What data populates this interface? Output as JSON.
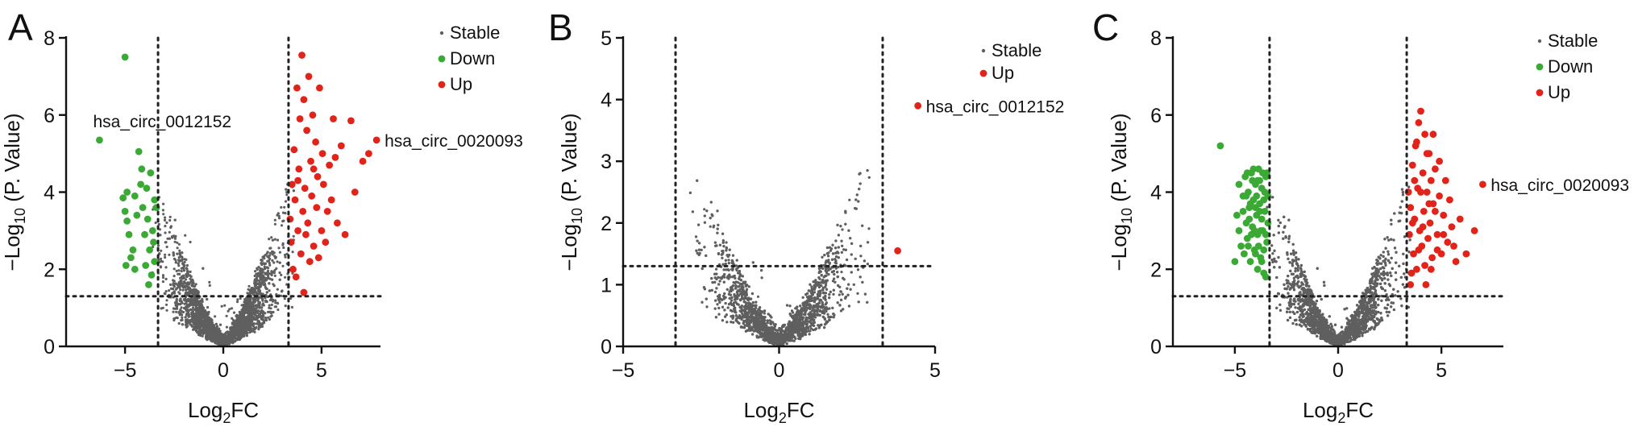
{
  "colors": {
    "stable": "#5f5f5f",
    "down": "#3aaa35",
    "up": "#e2231a",
    "axis": "#111111"
  },
  "chart_data": [
    {
      "type": "scatter",
      "panel": "A",
      "xlabel": "Log2FC",
      "ylabel": "−Log10 (P. Value)",
      "xlim": [
        -8,
        8
      ],
      "ylim": [
        0,
        8
      ],
      "xticks": [
        -5,
        0,
        5
      ],
      "yticks": [
        0,
        2,
        4,
        6,
        8
      ],
      "thresholds": {
        "log2fc": [
          -3.32,
          3.32
        ],
        "neg_log10_p": 1.3
      },
      "legend": {
        "placement": "top-right",
        "entries": [
          "Stable",
          "Down",
          "Up"
        ]
      },
      "stable_cloud": {
        "max_abs_log2fc": 3.6,
        "approx_points": 3200
      },
      "series": [
        {
          "name": "Down",
          "points": [
            [
              -6.3,
              5.35
            ],
            [
              -5.0,
              7.5
            ],
            [
              -4.95,
              2.1
            ],
            [
              -5.1,
              3.85
            ],
            [
              -4.9,
              4.0
            ],
            [
              -5.0,
              3.5
            ],
            [
              -4.8,
              2.9
            ],
            [
              -4.7,
              2.3
            ],
            [
              -4.6,
              2.5
            ],
            [
              -4.5,
              3.9
            ],
            [
              -4.4,
              3.4
            ],
            [
              -4.3,
              5.05
            ],
            [
              -4.2,
              4.2
            ],
            [
              -4.15,
              4.6
            ],
            [
              -4.1,
              3.6
            ],
            [
              -4.0,
              2.9
            ],
            [
              -3.95,
              2.1
            ],
            [
              -3.9,
              4.1
            ],
            [
              -3.85,
              3.3
            ],
            [
              -3.8,
              1.6
            ],
            [
              -3.75,
              2.5
            ],
            [
              -3.7,
              4.5
            ],
            [
              -3.65,
              1.85
            ],
            [
              -3.6,
              3.0
            ],
            [
              -3.55,
              2.7
            ],
            [
              -3.5,
              3.8
            ],
            [
              -3.5,
              2.2
            ],
            [
              -3.4,
              3.6
            ],
            [
              -4.9,
              3.25
            ],
            [
              -4.5,
              2.0
            ]
          ]
        },
        {
          "name": "Up",
          "points": [
            [
              3.4,
              3.3
            ],
            [
              3.45,
              2.7
            ],
            [
              3.5,
              4.2
            ],
            [
              3.55,
              2.0
            ],
            [
              3.6,
              5.1
            ],
            [
              3.65,
              3.8
            ],
            [
              3.7,
              1.8
            ],
            [
              3.75,
              6.7
            ],
            [
              3.8,
              3.0
            ],
            [
              3.85,
              4.6
            ],
            [
              3.9,
              5.9
            ],
            [
              3.95,
              2.4
            ],
            [
              4.0,
              7.55
            ],
            [
              4.05,
              3.5
            ],
            [
              4.1,
              1.4
            ],
            [
              4.1,
              6.4
            ],
            [
              4.15,
              4.1
            ],
            [
              4.2,
              2.9
            ],
            [
              4.25,
              5.6
            ],
            [
              4.3,
              3.2
            ],
            [
              4.35,
              7.0
            ],
            [
              4.4,
              2.2
            ],
            [
              4.45,
              4.8
            ],
            [
              4.5,
              3.9
            ],
            [
              4.55,
              6.0
            ],
            [
              4.6,
              2.6
            ],
            [
              4.7,
              5.3
            ],
            [
              4.75,
              3.6
            ],
            [
              4.8,
              4.4
            ],
            [
              4.85,
              2.3
            ],
            [
              4.9,
              6.7
            ],
            [
              5.0,
              3.0
            ],
            [
              5.05,
              5.0
            ],
            [
              5.1,
              4.2
            ],
            [
              5.2,
              2.7
            ],
            [
              5.3,
              3.5
            ],
            [
              5.4,
              4.7
            ],
            [
              5.5,
              3.8
            ],
            [
              5.6,
              5.9
            ],
            [
              5.7,
              4.9
            ],
            [
              5.8,
              3.2
            ],
            [
              6.0,
              5.2
            ],
            [
              6.2,
              2.9
            ],
            [
              6.5,
              5.85
            ],
            [
              6.7,
              4.0
            ],
            [
              7.1,
              4.8
            ],
            [
              7.4,
              5.0
            ],
            [
              7.8,
              5.35
            ],
            [
              3.8,
              4.3
            ],
            [
              4.6,
              4.6
            ]
          ]
        }
      ],
      "annotations": [
        {
          "label": "hsa_circ_0012152",
          "x": -6.3,
          "y": 5.35
        },
        {
          "label": "hsa_circ_0020093",
          "x": 7.8,
          "y": 5.35
        }
      ]
    },
    {
      "type": "scatter",
      "panel": "B",
      "xlabel": "Log2FC",
      "ylabel": "−Log10 (P. Value)",
      "xlim": [
        -5,
        5
      ],
      "ylim": [
        0,
        5
      ],
      "xticks": [
        -5,
        0,
        5
      ],
      "yticks": [
        0,
        1,
        2,
        3,
        4,
        5
      ],
      "thresholds": {
        "log2fc": [
          -3.32,
          3.32
        ],
        "neg_log10_p": 1.3
      },
      "legend": {
        "placement": "top-right",
        "entries": [
          "Stable",
          "Up"
        ]
      },
      "stable_cloud": {
        "max_abs_log2fc": 2.9,
        "approx_points": 3400
      },
      "series": [
        {
          "name": "Up",
          "points": [
            [
              4.45,
              3.9
            ],
            [
              3.8,
              1.55
            ]
          ]
        }
      ],
      "annotations": [
        {
          "label": "hsa_circ_0012152",
          "x": 4.45,
          "y": 3.9
        }
      ]
    },
    {
      "type": "scatter",
      "panel": "C",
      "xlabel": "Log2FC",
      "ylabel": "−Log10 (P. Value)",
      "xlim": [
        -8,
        8
      ],
      "ylim": [
        0,
        8
      ],
      "xticks": [
        -5,
        0,
        5
      ],
      "yticks": [
        0,
        2,
        4,
        6,
        8
      ],
      "thresholds": {
        "log2fc": [
          -3.32,
          3.32
        ],
        "neg_log10_p": 1.3
      },
      "legend": {
        "placement": "top-right",
        "entries": [
          "Stable",
          "Down",
          "Up"
        ]
      },
      "stable_cloud": {
        "max_abs_log2fc": 3.5,
        "approx_points": 5200
      },
      "series": [
        {
          "name": "Down",
          "points": [
            [
              -5.7,
              5.2
            ],
            [
              -5.0,
              2.2
            ],
            [
              -4.9,
              3.4
            ],
            [
              -4.8,
              3.0
            ],
            [
              -4.7,
              2.6
            ],
            [
              -4.6,
              3.9
            ],
            [
              -4.55,
              2.4
            ],
            [
              -4.5,
              4.4
            ],
            [
              -4.45,
              3.2
            ],
            [
              -4.4,
              2.8
            ],
            [
              -4.35,
              4.0
            ],
            [
              -4.3,
              3.6
            ],
            [
              -4.25,
              2.2
            ],
            [
              -4.2,
              4.5
            ],
            [
              -4.15,
              3.1
            ],
            [
              -4.1,
              3.8
            ],
            [
              -4.05,
              2.5
            ],
            [
              -4.0,
              4.2
            ],
            [
              -3.95,
              3.4
            ],
            [
              -3.9,
              2.9
            ],
            [
              -3.85,
              4.6
            ],
            [
              -3.8,
              3.7
            ],
            [
              -3.75,
              2.3
            ],
            [
              -3.7,
              4.1
            ],
            [
              -3.65,
              3.0
            ],
            [
              -3.6,
              1.9
            ],
            [
              -3.55,
              3.5
            ],
            [
              -3.5,
              4.4
            ],
            [
              -3.45,
              2.7
            ],
            [
              -3.4,
              3.9
            ],
            [
              -3.4,
              3.2
            ],
            [
              -3.45,
              4.5
            ],
            [
              -3.5,
              1.8
            ],
            [
              -3.6,
              2.5
            ],
            [
              -3.7,
              3.3
            ],
            [
              -3.8,
              4.3
            ],
            [
              -3.9,
              2.0
            ],
            [
              -4.0,
              3.6
            ],
            [
              -4.1,
              4.6
            ],
            [
              -4.2,
              2.9
            ],
            [
              -4.3,
              3.3
            ],
            [
              -4.4,
              4.5
            ],
            [
              -4.6,
              3.5
            ],
            [
              -4.8,
              4.2
            ],
            [
              -3.55,
              4.0
            ],
            [
              -3.65,
              4.5
            ],
            [
              -3.75,
              3.0
            ],
            [
              -3.85,
              2.6
            ],
            [
              -3.95,
              3.9
            ],
            [
              -4.05,
              3.0
            ],
            [
              -4.15,
              4.3
            ],
            [
              -4.25,
              3.7
            ],
            [
              -4.35,
              2.6
            ],
            [
              -4.45,
              3.9
            ],
            [
              -3.5,
              2.9
            ],
            [
              -3.6,
              3.8
            ],
            [
              -3.7,
              2.2
            ],
            [
              -3.8,
              3.5
            ],
            [
              -3.9,
              4.3
            ],
            [
              -4.0,
              2.4
            ]
          ]
        },
        {
          "name": "Up",
          "points": [
            [
              3.4,
              4.0
            ],
            [
              3.45,
              2.9
            ],
            [
              3.5,
              3.6
            ],
            [
              3.55,
              1.9
            ],
            [
              3.6,
              4.7
            ],
            [
              3.65,
              2.4
            ],
            [
              3.7,
              3.3
            ],
            [
              3.75,
              5.2
            ],
            [
              3.8,
              2.0
            ],
            [
              3.85,
              4.1
            ],
            [
              3.9,
              5.8
            ],
            [
              3.95,
              3.0
            ],
            [
              4.0,
              6.1
            ],
            [
              4.05,
              2.6
            ],
            [
              4.1,
              4.5
            ],
            [
              4.15,
              3.5
            ],
            [
              4.2,
              5.5
            ],
            [
              4.25,
              1.6
            ],
            [
              4.3,
              4.0
            ],
            [
              4.35,
              2.8
            ],
            [
              4.4,
              5.0
            ],
            [
              4.45,
              3.2
            ],
            [
              4.5,
              4.3
            ],
            [
              4.55,
              2.3
            ],
            [
              4.6,
              3.7
            ],
            [
              4.7,
              4.6
            ],
            [
              4.8,
              2.9
            ],
            [
              4.9,
              3.9
            ],
            [
              5.0,
              2.4
            ],
            [
              5.1,
              3.4
            ],
            [
              5.2,
              4.3
            ],
            [
              5.3,
              2.7
            ],
            [
              5.5,
              3.1
            ],
            [
              5.7,
              2.2
            ],
            [
              5.9,
              3.3
            ],
            [
              6.2,
              2.4
            ],
            [
              6.6,
              3.0
            ],
            [
              7.0,
              4.2
            ],
            [
              3.5,
              1.6
            ],
            [
              3.7,
              4.3
            ],
            [
              3.9,
              2.5
            ],
            [
              4.1,
              3.1
            ],
            [
              4.3,
              5.0
            ],
            [
              4.5,
              2.0
            ],
            [
              4.7,
              3.5
            ],
            [
              4.9,
              4.8
            ],
            [
              5.1,
              2.9
            ],
            [
              5.4,
              3.8
            ],
            [
              3.6,
              3.2
            ],
            [
              3.8,
              5.3
            ],
            [
              4.0,
              4.0
            ],
            [
              4.2,
              2.1
            ],
            [
              4.4,
              3.7
            ],
            [
              4.6,
              5.5
            ],
            [
              4.8,
              2.5
            ],
            [
              5.6,
              2.6
            ]
          ]
        }
      ],
      "annotations": [
        {
          "label": "hsa_circ_0020093",
          "x": 7.0,
          "y": 4.2
        }
      ]
    }
  ]
}
